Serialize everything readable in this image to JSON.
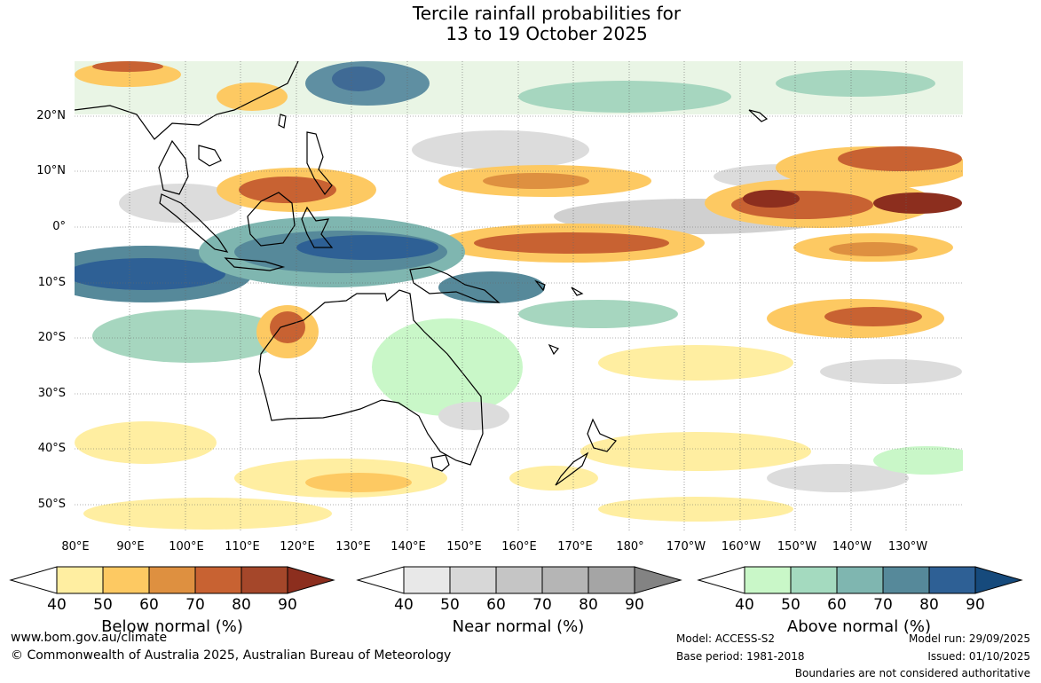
{
  "title_line1": "Tercile rainfall probabilities for",
  "title_line2": "13 to 19 October 2025",
  "lat_ticks": [
    "20°N",
    "10°N",
    "0°",
    "10°S",
    "20°S",
    "30°S",
    "40°S",
    "50°S"
  ],
  "lon_ticks": [
    "80°E",
    "90°E",
    "100°E",
    "110°E",
    "120°E",
    "130°E",
    "140°E",
    "150°E",
    "160°E",
    "170°E",
    "180°",
    "170°W",
    "160°W",
    "150°W",
    "140°W",
    "130°W"
  ],
  "legends": [
    {
      "title": "Below normal (%)",
      "labels": [
        "40",
        "50",
        "60",
        "70",
        "80",
        "90"
      ],
      "colors": [
        "#ffeea1",
        "#fdc962",
        "#de9040",
        "#c86232",
        "#a5472a",
        "#8c2e1e"
      ]
    },
    {
      "title": "Near normal (%)",
      "labels": [
        "40",
        "50",
        "60",
        "70",
        "80",
        "90"
      ],
      "colors": [
        "#e8e8e8",
        "#d7d7d7",
        "#c5c5c5",
        "#b5b5b5",
        "#a5a5a5",
        "#838383"
      ]
    },
    {
      "title": "Above normal (%)",
      "labels": [
        "40",
        "50",
        "60",
        "70",
        "80",
        "90"
      ],
      "colors": [
        "#c9f7c8",
        "#a4dabf",
        "#7fb6b0",
        "#56899a",
        "#2e6095",
        "#164a7c"
      ]
    }
  ],
  "footer": {
    "url": "www.bom.gov.au/climate",
    "copyright": "© Commonwealth of Australia 2025, Australian Bureau of Meteorology",
    "model": "Model: ACCESS-S2",
    "base_period": "Base period: 1981-2018",
    "model_run": "Model run: 29/09/2025",
    "issued": "Issued: 01/10/2025",
    "disclaimer": "Boundaries are not considered authoritative"
  }
}
